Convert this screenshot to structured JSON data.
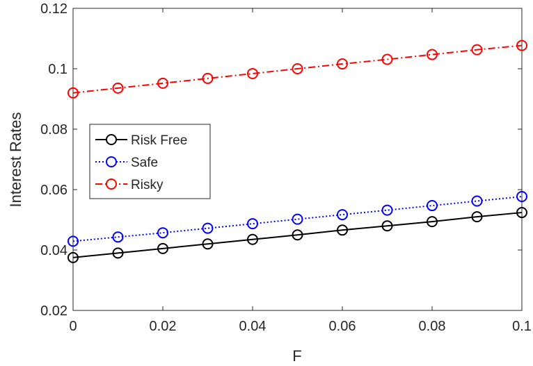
{
  "chart_data": {
    "type": "line",
    "title": "",
    "xlabel": "F",
    "ylabel": "Interest Rates",
    "xlim": [
      0,
      0.1
    ],
    "ylim": [
      0.02,
      0.12
    ],
    "xticks": [
      0,
      0.02,
      0.04,
      0.06,
      0.08,
      0.1
    ],
    "xtick_labels": [
      "0",
      "0.02",
      "0.04",
      "0.06",
      "0.08",
      "0.1"
    ],
    "yticks": [
      0.02,
      0.04,
      0.06,
      0.08,
      0.1,
      0.12
    ],
    "ytick_labels": [
      "0.02",
      "0.04",
      "0.06",
      "0.08",
      "0.1",
      "0.12"
    ],
    "grid": false,
    "legend_position": "center-left",
    "x": [
      0,
      0.01,
      0.02,
      0.03,
      0.04,
      0.05,
      0.06,
      0.07,
      0.08,
      0.09,
      0.1
    ],
    "series": [
      {
        "name": "Risk Free",
        "color": "#000000",
        "line_style": "solid",
        "marker": "circle",
        "values": [
          0.0375,
          0.039,
          0.0405,
          0.042,
          0.0435,
          0.045,
          0.0466,
          0.048,
          0.0494,
          0.051,
          0.0524
        ]
      },
      {
        "name": "Safe",
        "color": "#0000ff",
        "line_style": "dotted",
        "marker": "circle",
        "values": [
          0.0429,
          0.0443,
          0.0457,
          0.0472,
          0.0487,
          0.0502,
          0.0517,
          0.0532,
          0.0547,
          0.0562,
          0.0577
        ]
      },
      {
        "name": "Risky",
        "color": "#ff0000",
        "line_style": "dash-dot",
        "marker": "circle",
        "values": [
          0.092,
          0.0936,
          0.0952,
          0.0968,
          0.0984,
          0.1,
          0.1016,
          0.1031,
          0.1047,
          0.1063,
          0.1077
        ]
      }
    ]
  }
}
